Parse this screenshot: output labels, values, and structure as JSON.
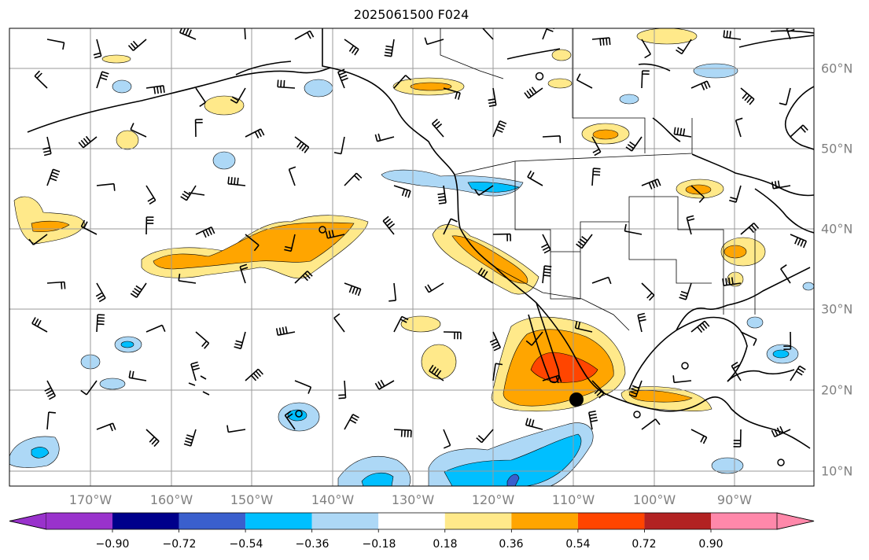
{
  "title": "2025061500 F024",
  "map": {
    "lon_labels": [
      "170°W",
      "160°W",
      "150°W",
      "140°W",
      "130°W",
      "120°W",
      "110°W",
      "100°W",
      "90°W"
    ],
    "lat_labels": [
      "60°N",
      "50°N",
      "40°N",
      "30°N",
      "20°N",
      "10°N"
    ],
    "grid": true,
    "wind_barbs": true
  },
  "colorbar": {
    "ticks": [
      "−0.90",
      "−0.72",
      "−0.54",
      "−0.36",
      "−0.18",
      "0.18",
      "0.36",
      "0.54",
      "0.72",
      "0.90"
    ],
    "colors": [
      "#9932cc",
      "#00008b",
      "#3a5fcd",
      "#00bfff",
      "#add8f6",
      "#ffffff",
      "#ffe98a",
      "#ffa500",
      "#ff4500",
      "#b22222",
      "#ff88aa"
    ],
    "extend": "both"
  }
}
